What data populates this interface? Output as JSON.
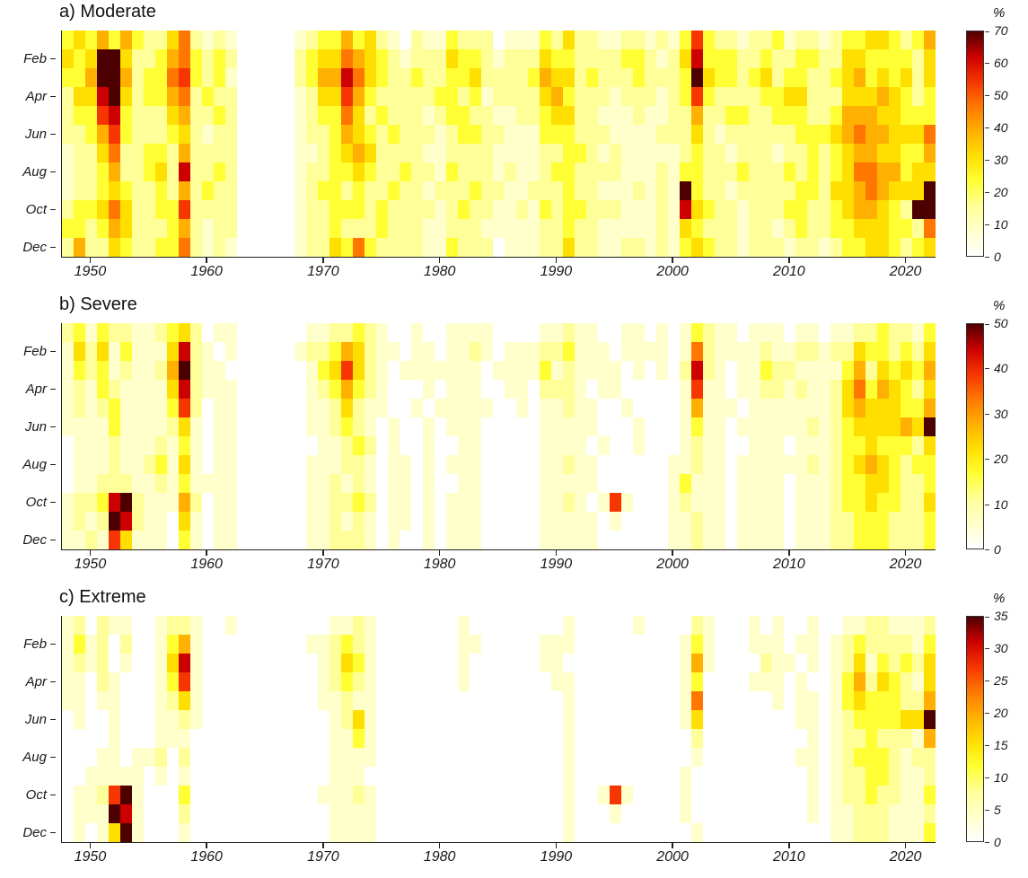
{
  "figure": {
    "unit_label": "%",
    "month_ticks": [
      "Feb",
      "Apr",
      "Jun",
      "Aug",
      "Oct",
      "Dec"
    ],
    "year_ticks": [
      1950,
      1960,
      1970,
      1980,
      1990,
      2000,
      2010,
      2020
    ],
    "palette": [
      "#ffffff",
      "#ffffcc",
      "#ffff99",
      "#ffff33",
      "#ffdf00",
      "#ffb000",
      "#ff7700",
      "#f63500",
      "#cc0000",
      "#4d0000"
    ],
    "axis_color": "#222222",
    "panels": [
      {
        "label": "a) Moderate",
        "vmax": 70,
        "colorbar_ticks": [
          0,
          10,
          20,
          30,
          40,
          50,
          60,
          70
        ]
      },
      {
        "label": "b) Severe",
        "vmax": 50,
        "colorbar_ticks": [
          0,
          10,
          20,
          30,
          40,
          50
        ]
      },
      {
        "label": "c) Extreme",
        "vmax": 35,
        "colorbar_ticks": [
          0,
          5,
          10,
          15,
          20,
          25,
          30,
          35
        ]
      }
    ]
  },
  "chart_data": [
    {
      "type": "heatmap",
      "title": "a) Moderate",
      "unit": "%",
      "x_range": [
        1948,
        2022
      ],
      "x_ticks": [
        1950,
        1960,
        1970,
        1980,
        1990,
        2000,
        2010,
        2020
      ],
      "y_categories": [
        "Jan",
        "Feb",
        "Mar",
        "Apr",
        "May",
        "Jun",
        "Jul",
        "Aug",
        "Sep",
        "Oct",
        "Nov",
        "Dec"
      ],
      "vmin": 0,
      "vmax": 70,
      "colorbar_ticks": [
        0,
        10,
        20,
        30,
        40,
        50,
        60,
        70
      ],
      "encoding": "each row is a string of digits 0-9, one per year 1948-2022 left to right; value_percent = digit/9 * vmax (estimated from pixel colors)",
      "rows": [
        "343535322462121000001233534210211322201113242211221213732212231221233443235",
        "434994223563232000002344654321222433212224332222332124833322322332244333324",
        "335995233673231000002355864322322334222235442322232223943323423322345343424",
        "244894233562322000001244753222223323122224532221222123732222334422244454323",
        "233783222452232000001233642322212332211223442211121122522332233322355544333",
        "223573222342122000001223543232221233221113332221111222421222222333456554446",
        "122462233252222000001123454222211222211112233212111112322122212232345544335",
        "122352234282232000001223343223221322212112332222111213322232223232346655344",
        "122343223252322000001233232232212223221122232211121219322122222332445654449",
        "233464223372222000001223332322221232211213233222111218432212223322345543299",
        "332354222352122000001223222322211222111112232211111214322212212322334443326",
        "252243223362121000001224363222211322201112242211221213432212221221233443234"
      ]
    },
    {
      "type": "heatmap",
      "title": "b) Severe",
      "unit": "%",
      "x_range": [
        1948,
        2022
      ],
      "x_ticks": [
        1950,
        1960,
        1970,
        1980,
        1990,
        2000,
        2010,
        2020
      ],
      "y_categories": [
        "Jan",
        "Feb",
        "Mar",
        "Apr",
        "May",
        "Jun",
        "Jul",
        "Aug",
        "Sep",
        "Oct",
        "Nov",
        "Dec"
      ],
      "vmin": 0,
      "vmax": 50,
      "colorbar_ticks": [
        0,
        10,
        20,
        30,
        40,
        50
      ],
      "encoding": "each row is a string of digits 0-9, one per year 1948-2022 left to right; value_percent = digit/9 * vmax (estimated from pixel colors)",
      "rows": [
        "231322112342011000000112232100100111100001121100110101321101110110112232213",
        "142413111482101000001223542110110112101112231110111101621111211221224332324",
        "132312112592110000000134742101111111011113121111010102821011322111135243435",
        "121321111482111000000123532100010111001102221011000001711011221211246354324",
        "121231111372011000000112421100101111100101121100100001511101111111245444335",
        "111131111241011000000112321010010111000001111100010001311011111121234444549",
        "011121112131011000000011232010010011000001111010010001211001110111233433324",
        "011121123141011000000111221011010111000001121100000011211011111121234543233",
        "011222112131111000000112121011010011000001111100000013111011110111233443223",
        "122389211152011000000112232011010111000001121017100012111011110111233433224",
        "121298211041011000000112121011010111000001111101000011211011110111223332223",
        "112174111031011000000112221010010111000001111100000011211011110111223332223"
      ]
    },
    {
      "type": "heatmap",
      "title": "c) Extreme",
      "unit": "%",
      "x_range": [
        1948,
        2022
      ],
      "x_ticks": [
        1950,
        1960,
        1970,
        1980,
        1990,
        2000,
        2010,
        2020
      ],
      "y_categories": [
        "Jan",
        "Feb",
        "Mar",
        "Apr",
        "May",
        "Jun",
        "Jul",
        "Aug",
        "Sep",
        "Oct",
        "Nov",
        "Dec"
      ],
      "vmin": 0,
      "vmax": 35,
      "colorbar_ticks": [
        0,
        5,
        10,
        15,
        20,
        25,
        30,
        35
      ],
      "encoding": "each row is a string of digits 0-9, one per year 1948-2022 left to right; value_percent = digit/9 * vmax (estimated from pixel colors)",
      "rows": [
        "120211001221001000000001121000000010000000010000010000210001010010011221112",
        "131202001351000000000112321000000011000001110000000001310001110110123222213",
        "121201001481000000000012431000000010000001100000000001510000211010124132324",
        "110210001371000000000012321000000010000000110000000001300001110100135243214",
        "110110001241000000000011211000000000000000010000000001600000010110134333225",
        "010010001121000000000001241000000000000000010000000001400000000110123333449",
        "000010001110000000000001131000000000000000010000000000200000000010122322215",
        "000110112020000000000001111000000000000000010000000000100000000110123332122",
        "001111101010000000000001110000000000000000010000000001000000000010122332112",
        "011279100030000000000011121000000000000000010017100001000000000010122322113",
        "011198100020000000000001111000000000000000010001000001000000000010112221112",
        "010149100010000000000001111000000000000000010000000000100000000000112221113"
      ]
    }
  ]
}
